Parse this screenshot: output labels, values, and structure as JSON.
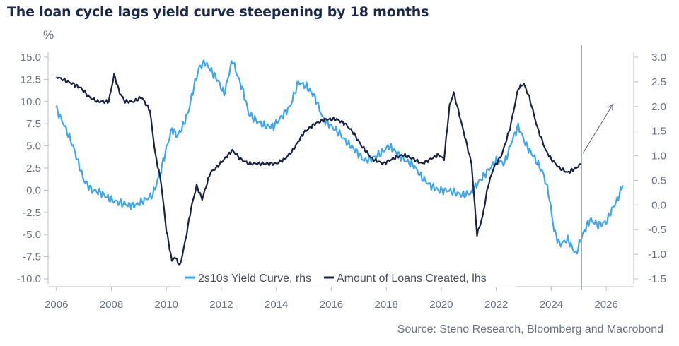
{
  "title": "The loan cycle lags yield curve steepening by 18 months",
  "unit_label": "%",
  "source": "Source: Steno Research, Bloomberg and Macrobond",
  "colors": {
    "yield_curve": "#3ea6ee",
    "loans": "#1a2240",
    "axis": "#b8bcc4",
    "marker": "#9aa0a8"
  },
  "chart_data": {
    "type": "line",
    "title": "The loan cycle lags yield curve steepening by 18 months",
    "xlabel": "",
    "left_axis": {
      "label": "%",
      "ylim": [
        -10,
        15
      ],
      "ticks": [
        "15.0",
        "12.5",
        "10.0",
        "7.5",
        "5.0",
        "2.5",
        "0.0",
        "-2.5",
        "-5.0",
        "-7.5",
        "-10.0"
      ],
      "tick_values": [
        15,
        12.5,
        10,
        7.5,
        5,
        2.5,
        0,
        -2.5,
        -5,
        -7.5,
        -10
      ]
    },
    "right_axis": {
      "ylim": [
        -1.6,
        3.2
      ],
      "ticks": [
        "3.0",
        "2.5",
        "2.0",
        "1.5",
        "1.0",
        "0.5",
        "0.0",
        "-0.5",
        "-1.0",
        "-1.5"
      ],
      "tick_values": [
        3.0,
        2.5,
        2.0,
        1.5,
        1.0,
        0.5,
        0.0,
        -0.5,
        -1.0,
        -1.5
      ]
    },
    "x_axis": {
      "range": [
        2005.8,
        2027.0
      ],
      "ticks": [
        "2006",
        "2008",
        "2010",
        "2012",
        "2014",
        "2016",
        "2018",
        "2020",
        "2022",
        "2024",
        "2026"
      ],
      "tick_values": [
        2006,
        2008,
        2010,
        2012,
        2014,
        2016,
        2018,
        2020,
        2022,
        2024,
        2026
      ]
    },
    "legend_position": "bottom-center",
    "grid": false,
    "vertical_marker_x": 2025.1,
    "arrow": {
      "from": [
        2025.15,
        1.05
      ],
      "to": [
        2026.25,
        2.05
      ]
    },
    "series": [
      {
        "name": "2s10s Yield Curve, rhs",
        "axis": "right",
        "x": [
          2006.0,
          2006.3,
          2006.6,
          2007.0,
          2007.3,
          2007.6,
          2008.0,
          2008.3,
          2008.6,
          2008.9,
          2009.2,
          2009.5,
          2009.8,
          2010.0,
          2010.2,
          2010.4,
          2010.6,
          2010.8,
          2011.0,
          2011.2,
          2011.4,
          2011.6,
          2011.9,
          2012.1,
          2012.4,
          2012.6,
          2012.8,
          2013.0,
          2013.3,
          2013.6,
          2013.9,
          2014.2,
          2014.5,
          2014.8,
          2015.1,
          2015.4,
          2015.7,
          2016.0,
          2016.3,
          2016.6,
          2016.9,
          2017.2,
          2017.5,
          2017.8,
          2018.1,
          2018.4,
          2018.7,
          2019.0,
          2019.3,
          2019.6,
          2019.9,
          2020.2,
          2020.5,
          2020.8,
          2021.1,
          2021.4,
          2021.7,
          2022.0,
          2022.3,
          2022.6,
          2022.8,
          2023.1,
          2023.4,
          2023.7,
          2023.9,
          2024.1,
          2024.3,
          2024.6,
          2024.9,
          2025.1,
          2025.4,
          2025.7,
          2026.0,
          2026.2,
          2026.4,
          2026.6
        ],
        "values": [
          1.95,
          1.6,
          1.2,
          0.5,
          0.3,
          0.25,
          0.1,
          0.05,
          0.0,
          0.0,
          0.1,
          0.2,
          0.7,
          1.15,
          1.55,
          1.4,
          1.6,
          1.9,
          2.4,
          2.8,
          2.9,
          2.75,
          2.5,
          2.25,
          2.95,
          2.6,
          2.3,
          1.85,
          1.7,
          1.6,
          1.6,
          1.8,
          2.0,
          2.5,
          2.4,
          2.2,
          1.75,
          1.6,
          1.45,
          1.25,
          1.1,
          0.9,
          0.95,
          1.05,
          1.2,
          1.05,
          0.9,
          0.8,
          0.55,
          0.4,
          0.3,
          0.3,
          0.25,
          0.2,
          0.25,
          0.5,
          0.7,
          0.9,
          0.85,
          1.35,
          1.6,
          1.2,
          0.95,
          0.65,
          0.25,
          -0.5,
          -0.8,
          -0.7,
          -1.0,
          -0.65,
          -0.3,
          -0.4,
          -0.35,
          -0.1,
          0.1,
          0.4
        ]
      },
      {
        "name": "Amount of Loans Created, lhs",
        "axis": "left",
        "x": [
          2006.0,
          2006.3,
          2006.6,
          2006.9,
          2007.2,
          2007.5,
          2007.9,
          2008.1,
          2008.3,
          2008.5,
          2008.8,
          2009.1,
          2009.4,
          2009.6,
          2009.8,
          2010.0,
          2010.2,
          2010.3,
          2010.5,
          2010.7,
          2010.9,
          2011.1,
          2011.3,
          2011.4,
          2011.6,
          2011.8,
          2012.1,
          2012.4,
          2012.7,
          2013.0,
          2013.3,
          2013.7,
          2014.0,
          2014.3,
          2014.6,
          2015.0,
          2015.4,
          2015.8,
          2016.2,
          2016.5,
          2016.8,
          2017.1,
          2017.5,
          2017.9,
          2018.2,
          2018.6,
          2019.0,
          2019.3,
          2019.6,
          2019.9,
          2020.1,
          2020.3,
          2020.45,
          2020.7,
          2020.9,
          2021.1,
          2021.3,
          2021.5,
          2021.7,
          2021.9,
          2022.2,
          2022.5,
          2022.8,
          2023.0,
          2023.2,
          2023.5,
          2023.8,
          2024.0,
          2024.3,
          2024.6,
          2024.9,
          2025.1
        ],
        "values": [
          12.8,
          12.4,
          12.0,
          11.5,
          10.5,
          10.0,
          10.0,
          13.0,
          11.0,
          10.0,
          10.0,
          10.5,
          9.0,
          4.0,
          1.0,
          -4.5,
          -8.0,
          -7.5,
          -8.5,
          -5.5,
          -2.0,
          0.5,
          -1.0,
          0.0,
          2.0,
          2.5,
          3.5,
          4.5,
          3.5,
          3.0,
          3.0,
          3.0,
          3.0,
          3.5,
          4.5,
          6.5,
          7.5,
          8.0,
          8.0,
          7.5,
          6.5,
          5.0,
          3.5,
          3.0,
          3.5,
          4.0,
          3.5,
          3.0,
          3.5,
          4.0,
          3.5,
          9.5,
          11.0,
          8.0,
          5.5,
          3.0,
          -5.0,
          -3.0,
          0.5,
          2.5,
          4.0,
          7.0,
          11.5,
          12.0,
          10.5,
          7.0,
          4.5,
          3.5,
          2.5,
          2.0,
          2.5,
          3.0
        ]
      }
    ]
  }
}
